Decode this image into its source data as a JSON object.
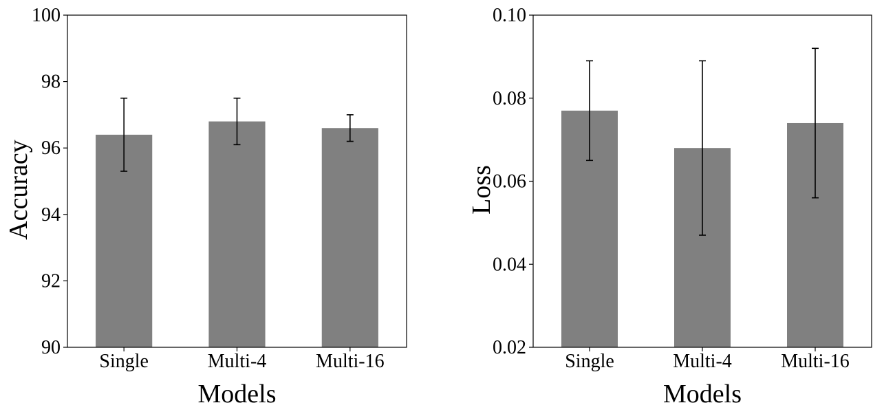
{
  "chart_data": [
    {
      "type": "bar",
      "title": "",
      "xlabel": "Models",
      "ylabel": "Accuracy",
      "categories": [
        "Single",
        "Multi-4",
        "Multi-16"
      ],
      "values": [
        96.4,
        96.8,
        96.6
      ],
      "error_low": [
        95.3,
        96.1,
        96.2
      ],
      "error_high": [
        97.5,
        97.5,
        97.0
      ],
      "ylim": [
        90,
        100
      ],
      "yticks": [
        90,
        92,
        94,
        96,
        98,
        100
      ],
      "ytick_labels": [
        "90",
        "92",
        "94",
        "96",
        "98",
        "100"
      ],
      "grid": false,
      "bar_color": "#808080",
      "error_color": "#000000"
    },
    {
      "type": "bar",
      "title": "",
      "xlabel": "Models",
      "ylabel": "Loss",
      "categories": [
        "Single",
        "Multi-4",
        "Multi-16"
      ],
      "values": [
        0.077,
        0.068,
        0.074
      ],
      "error_low": [
        0.065,
        0.047,
        0.056
      ],
      "error_high": [
        0.089,
        0.089,
        0.092
      ],
      "ylim": [
        0.02,
        0.1
      ],
      "yticks": [
        0.02,
        0.04,
        0.06,
        0.08,
        0.1
      ],
      "ytick_labels": [
        "0.02",
        "0.04",
        "0.06",
        "0.08",
        "0.10"
      ],
      "grid": false,
      "bar_color": "#808080",
      "error_color": "#000000"
    }
  ]
}
